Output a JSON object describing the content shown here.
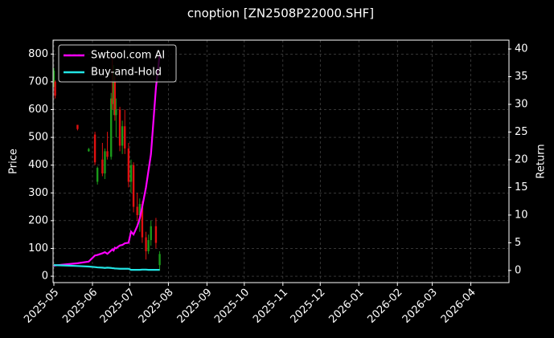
{
  "chart_data": {
    "type": "candlestick",
    "title": "cnoption [ZN2508P22000.SHF]",
    "ylabel": "Price",
    "y2label": "Return",
    "x": [
      "2025-05-01",
      "2025-05-02",
      "2025-05-20",
      "2025-05-29",
      "2025-06-03",
      "2025-06-05",
      "2025-06-09",
      "2025-06-11",
      "2025-06-13",
      "2025-06-16",
      "2025-06-17",
      "2025-06-18",
      "2025-06-19",
      "2025-06-20",
      "2025-06-23",
      "2025-06-25",
      "2025-06-27",
      "2025-06-30",
      "2025-07-02",
      "2025-07-04",
      "2025-07-07",
      "2025-07-09",
      "2025-07-11",
      "2025-07-14",
      "2025-07-16",
      "2025-07-18",
      "2025-07-22",
      "2025-07-25"
    ],
    "open": [
      690,
      700,
      545,
      450,
      510,
      340,
      420,
      370,
      450,
      430,
      640,
      620,
      700,
      580,
      600,
      470,
      540,
      460,
      340,
      400,
      250,
      220,
      260,
      140,
      90,
      130,
      180,
      40
    ],
    "high": [
      750,
      705,
      545,
      462,
      520,
      395,
      480,
      460,
      520,
      660,
      800,
      760,
      720,
      640,
      610,
      560,
      600,
      480,
      420,
      410,
      300,
      280,
      270,
      160,
      150,
      200,
      210,
      90
    ],
    "low": [
      680,
      640,
      525,
      448,
      400,
      330,
      360,
      350,
      420,
      420,
      600,
      580,
      560,
      500,
      450,
      440,
      440,
      320,
      300,
      230,
      200,
      160,
      120,
      60,
      80,
      110,
      100,
      20
    ],
    "close": [
      740,
      650,
      530,
      458,
      410,
      390,
      370,
      450,
      430,
      640,
      620,
      700,
      580,
      600,
      470,
      540,
      460,
      340,
      400,
      250,
      220,
      260,
      140,
      90,
      130,
      180,
      120,
      80
    ],
    "up_color": "#1a9a1a",
    "down_color": "#e01010",
    "series": [
      {
        "name": "Swtool.com AI",
        "color": "#ff00ff",
        "axis": "y2",
        "values": [
          0.8,
          0.9,
          1.3,
          1.6,
          2.7,
          2.8,
          3.1,
          3.3,
          3.0,
          3.6,
          3.8,
          3.6,
          4.1,
          4.0,
          4.5,
          4.6,
          4.9,
          5.0,
          7.0,
          6.5,
          8.0,
          9.4,
          11.5,
          15,
          18,
          21,
          33,
          39
        ]
      },
      {
        "name": "Buy-and-Hold",
        "color": "#22e5e5",
        "axis": "y2",
        "values": [
          1.0,
          0.95,
          0.8,
          0.7,
          0.6,
          0.55,
          0.5,
          0.45,
          0.5,
          0.45,
          0.4,
          0.4,
          0.35,
          0.35,
          0.3,
          0.3,
          0.3,
          0.3,
          0.1,
          0.1,
          0.1,
          0.1,
          0.15,
          0.15,
          0.1,
          0.1,
          0.1,
          0.1
        ]
      }
    ],
    "xlim": [
      "2025-05",
      "2026-05"
    ],
    "xticks": [
      "2025-05",
      "2025-06",
      "2025-07",
      "2025-08",
      "2025-09",
      "2025-10",
      "2025-11",
      "2025-12",
      "2026-01",
      "2026-02",
      "2026-03",
      "2026-04"
    ],
    "ylim": [
      -23,
      850
    ],
    "yticks": [
      0,
      100,
      200,
      300,
      400,
      500,
      600,
      700,
      800
    ],
    "y2lim": [
      -2.2,
      41.6
    ],
    "y2ticks": [
      0,
      5,
      10,
      15,
      20,
      25,
      30,
      35,
      40
    ],
    "grid": true,
    "legend": "upper left"
  }
}
